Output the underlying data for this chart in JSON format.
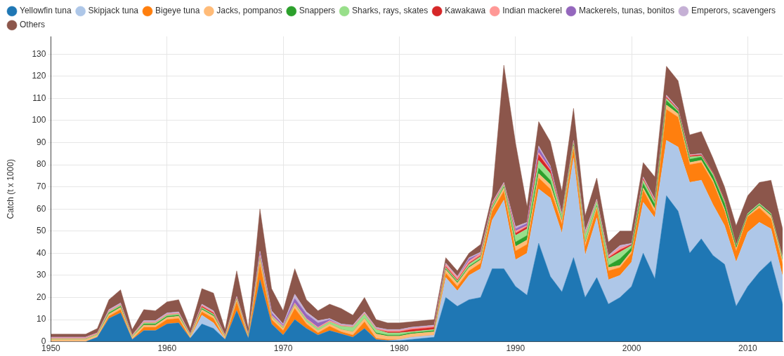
{
  "chart_data": {
    "type": "area",
    "stacked": true,
    "ylabel": "Catch (t x 1000)",
    "grid": true,
    "legend": "top left",
    "x": [
      1950,
      1951,
      1952,
      1953,
      1954,
      1955,
      1956,
      1957,
      1958,
      1959,
      1960,
      1961,
      1962,
      1963,
      1964,
      1965,
      1966,
      1967,
      1968,
      1969,
      1970,
      1971,
      1972,
      1973,
      1974,
      1975,
      1976,
      1977,
      1978,
      1979,
      1980,
      1981,
      1982,
      1983,
      1984,
      1985,
      1986,
      1987,
      1988,
      1989,
      1990,
      1991,
      1992,
      1993,
      1994,
      1995,
      1996,
      1997,
      1998,
      1999,
      2000,
      2001,
      2002,
      2003,
      2004,
      2005,
      2006,
      2007,
      2008,
      2009,
      2010,
      2011,
      2012,
      2013
    ],
    "xlim": [
      1950,
      2013
    ],
    "xticks": [
      1950,
      1960,
      1970,
      1980,
      1990,
      2000,
      2010
    ],
    "ylim": [
      0,
      138
    ],
    "yticks": [
      0,
      10,
      20,
      30,
      40,
      50,
      60,
      70,
      80,
      90,
      100,
      110,
      120,
      130
    ],
    "series": [
      {
        "name": "Yellowfin tuna",
        "color": "#1f77b4",
        "values": [
          0,
          0,
          0,
          0,
          2,
          10.5,
          13,
          1,
          5,
          5,
          8,
          8.5,
          1.5,
          8,
          6,
          1,
          14,
          1.5,
          28,
          8,
          3,
          10,
          6,
          3,
          5,
          3.5,
          2,
          6,
          1,
          0.5,
          0.5,
          1,
          1.5,
          2,
          20,
          16,
          19,
          20,
          33,
          33,
          25,
          21,
          44.5,
          29.5,
          22.5,
          38,
          20,
          29,
          17,
          20,
          25,
          40,
          28.5,
          66,
          59,
          40,
          46.5,
          39,
          35,
          16,
          25,
          31.5,
          36.5,
          17
        ]
      },
      {
        "name": "Skipjack tuna",
        "color": "#aec7e8",
        "values": [
          0,
          0,
          0,
          0,
          0,
          0,
          0,
          0,
          0,
          0,
          0,
          0,
          0,
          4,
          2.5,
          0,
          0,
          0,
          0,
          0,
          0,
          0,
          0,
          0,
          0,
          0,
          0,
          0,
          0,
          0,
          0.5,
          1,
          1,
          1,
          9,
          7,
          11,
          13,
          22,
          31,
          12,
          19,
          24.5,
          35.5,
          26.5,
          45,
          19,
          27,
          11,
          10,
          11,
          23,
          27.5,
          25,
          29,
          32,
          26.5,
          23,
          17.5,
          20,
          24.5,
          22.5,
          14.5,
          12.5
        ]
      },
      {
        "name": "Bigeye tuna",
        "color": "#ff7f0e",
        "values": [
          0,
          0,
          0,
          0,
          0,
          1,
          1.5,
          0,
          1.5,
          1.5,
          2,
          2,
          0,
          1.5,
          2,
          0,
          4,
          0,
          7,
          2,
          2,
          5,
          2,
          1,
          2,
          1,
          1,
          3,
          0.5,
          0.5,
          0,
          0,
          0,
          0,
          2,
          2,
          2,
          2.5,
          4,
          4,
          4,
          4,
          5,
          4,
          4,
          4,
          4,
          4,
          4,
          3.5,
          4,
          5.5,
          2.5,
          14,
          13.5,
          8,
          8,
          10,
          6.5,
          5,
          7,
          6.5,
          4.5,
          5.5
        ]
      },
      {
        "name": "Jacks, pompanos",
        "color": "#ffbb78",
        "values": [
          1,
          1,
          1,
          1,
          1,
          1,
          1,
          1,
          1,
          1,
          1,
          1,
          1,
          1,
          1,
          1,
          1,
          1,
          2,
          1,
          1,
          1.5,
          1,
          1,
          1,
          1,
          1.5,
          1.5,
          2,
          1.5,
          1.5,
          1.5,
          1.5,
          1.5,
          1.5,
          1.5,
          1.5,
          1.5,
          1,
          1.5,
          2,
          2,
          2,
          2,
          1.5,
          1.5,
          1.5,
          1,
          1.5,
          1,
          1,
          1,
          1.5,
          2,
          1.5,
          1,
          1,
          1,
          1,
          1,
          0.5,
          1,
          1.5,
          1.5
        ]
      },
      {
        "name": "Snappers",
        "color": "#2ca02c",
        "values": [
          0,
          0,
          0,
          0,
          0,
          0.5,
          0.5,
          0,
          0.5,
          0.5,
          0.5,
          0.5,
          0,
          0.5,
          0.5,
          0,
          0,
          0,
          0,
          0,
          0,
          0,
          0,
          0,
          0,
          0,
          0,
          0,
          0.5,
          0.5,
          0.5,
          0.5,
          0.5,
          0.5,
          0.5,
          0.5,
          0.5,
          0.5,
          0.5,
          0.5,
          2,
          2,
          2.5,
          2,
          0.5,
          0.5,
          0.5,
          0.5,
          1,
          3,
          1.5,
          2,
          2,
          2,
          1,
          1.5,
          1.5,
          2,
          2.5,
          1,
          0.5,
          0.5,
          0.5,
          0.5
        ]
      },
      {
        "name": "Sharks, rays, skates",
        "color": "#98df8a",
        "values": [
          0.3,
          0.3,
          0.3,
          0.3,
          0.5,
          0.5,
          0.5,
          0.5,
          0.5,
          0.5,
          0.5,
          0.5,
          0.5,
          0.5,
          0.5,
          0.5,
          0.5,
          0.5,
          1,
          0.5,
          0.5,
          0.5,
          1,
          1,
          1,
          1.5,
          2,
          2,
          1.5,
          1,
          1,
          0.5,
          0.5,
          0.5,
          0.5,
          0.5,
          1,
          1,
          1,
          1,
          3,
          3,
          3.5,
          3,
          2,
          1,
          3,
          2,
          3,
          3,
          1,
          1.5,
          1,
          1,
          0.5,
          1,
          0.5,
          1,
          1,
          0.5,
          0.5,
          0.5,
          0.5,
          1
        ]
      },
      {
        "name": "Kawakawa",
        "color": "#d62728",
        "values": [
          0,
          0,
          0,
          0,
          0,
          0,
          0,
          0,
          0,
          0,
          0,
          0,
          0,
          0.5,
          0.5,
          0,
          0,
          0,
          0,
          0,
          0,
          0,
          0,
          0,
          0,
          0,
          0,
          0,
          0,
          0.5,
          0.5,
          1,
          1,
          1,
          0.5,
          0.5,
          0.5,
          0.5,
          0.5,
          0,
          1,
          1,
          2.5,
          1.5,
          0,
          0,
          0,
          0,
          0.5,
          1,
          0.5,
          0.5,
          0.5,
          0.5,
          0.5,
          0.5,
          0.5,
          0.5,
          0.5,
          0,
          0,
          0,
          0,
          0
        ]
      },
      {
        "name": "Indian mackerel",
        "color": "#ff9896",
        "values": [
          0.5,
          0.5,
          0.5,
          0.5,
          0.5,
          0.5,
          0.5,
          0.5,
          0.5,
          0.5,
          0.5,
          0.5,
          0.5,
          0.5,
          0.5,
          0.5,
          0.5,
          0.5,
          1,
          0.5,
          0.5,
          0.5,
          0.5,
          0.5,
          0.5,
          0.5,
          0.5,
          0.5,
          0.5,
          0.5,
          0.5,
          0.5,
          0.5,
          0.5,
          1,
          1,
          1,
          1,
          0.5,
          0.5,
          1,
          0.5,
          1,
          0.5,
          0.5,
          0.5,
          1,
          0.5,
          0.5,
          1,
          0,
          0.5,
          0.5,
          0.5,
          0,
          0.5,
          0,
          0,
          0,
          0,
          0,
          0,
          0,
          0
        ]
      },
      {
        "name": "Mackerels, tunas, bonitos",
        "color": "#9467bd",
        "values": [
          0,
          0,
          0,
          0,
          0,
          0,
          0,
          0,
          0,
          0,
          0,
          0,
          0,
          0,
          0,
          0,
          0,
          0,
          1,
          1,
          0.5,
          2,
          2,
          2,
          0.5,
          0,
          0,
          0,
          0,
          0,
          0,
          0,
          0,
          0,
          0,
          0,
          1,
          0,
          0,
          0,
          1,
          1,
          2,
          1,
          0,
          0,
          0,
          0,
          0,
          0,
          0,
          0,
          0,
          0,
          0,
          0,
          0,
          0,
          0,
          0,
          0,
          0,
          0,
          0
        ]
      },
      {
        "name": "Emperors, scavengers",
        "color": "#c5b0d5",
        "values": [
          0.3,
          0.3,
          0.3,
          0.3,
          0,
          0.5,
          0.5,
          0,
          0.5,
          0.5,
          0.5,
          0.5,
          0,
          0.5,
          0.5,
          0,
          0.5,
          0,
          1,
          1,
          0.5,
          2,
          1,
          1,
          0.5,
          0.5,
          0.5,
          0.5,
          0.5,
          0.5,
          0.5,
          0.5,
          0.5,
          0.5,
          0.5,
          0.5,
          0.5,
          0.5,
          0.5,
          0.5,
          1,
          0.5,
          1,
          0.5,
          0.5,
          0.5,
          1,
          0.5,
          0.5,
          1,
          0.5,
          0.5,
          0.5,
          0.5,
          0.5,
          0,
          0.5,
          0,
          0,
          0,
          0,
          0,
          0,
          0
        ]
      },
      {
        "name": "Others",
        "color": "#8c564b",
        "values": [
          1.3,
          1.3,
          1.3,
          1.3,
          2,
          4.5,
          6,
          2.5,
          5,
          4.5,
          5,
          5.5,
          2.5,
          7,
          8,
          2.5,
          11.5,
          2.5,
          19,
          10,
          6,
          11.5,
          5.5,
          4.5,
          6.5,
          7,
          4.5,
          6.5,
          3.5,
          3,
          3,
          2.5,
          2.5,
          2.5,
          2.5,
          2.5,
          2,
          3.5,
          3,
          53,
          38,
          7,
          11,
          11,
          10,
          14.5,
          7,
          9.5,
          6,
          6.5,
          5.5,
          6.5,
          10,
          13,
          12.5,
          9,
          10,
          6.5,
          6,
          9,
          8,
          9.5,
          15,
          13
        ]
      }
    ]
  }
}
